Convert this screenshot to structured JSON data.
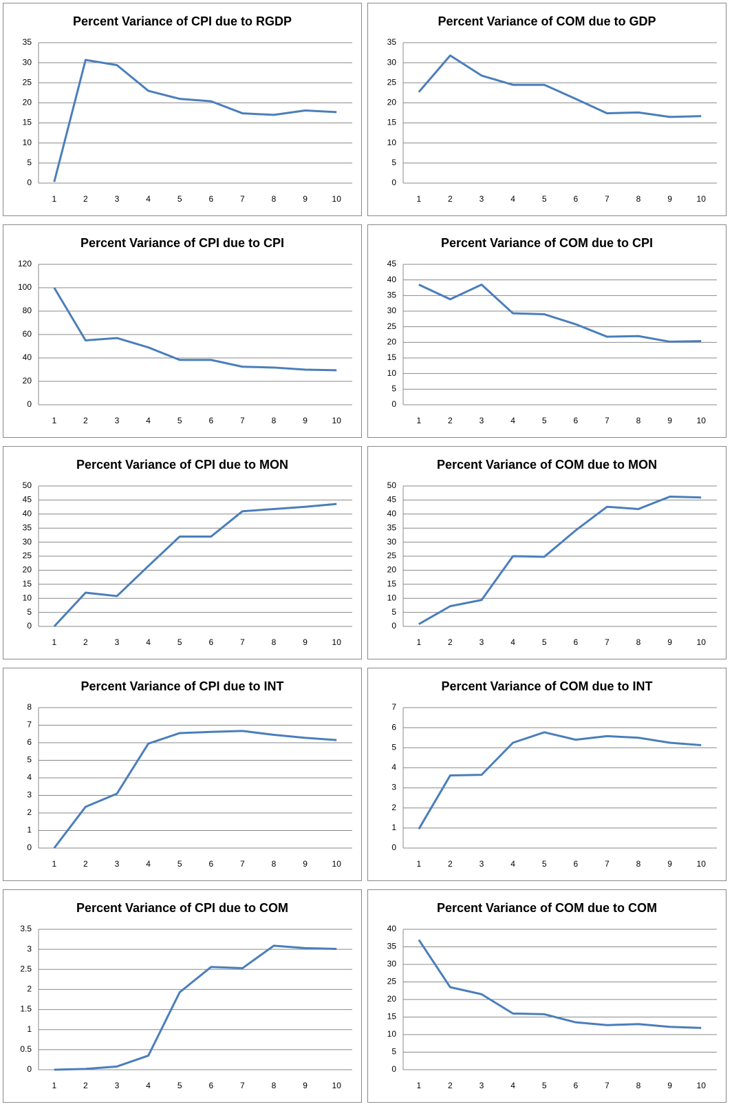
{
  "chart_data": [
    {
      "type": "line",
      "title": "Percent Variance of CPI due to RGDP",
      "categories": [
        "1",
        "2",
        "3",
        "4",
        "5",
        "6",
        "7",
        "8",
        "9",
        "10"
      ],
      "series": [
        {
          "color": "#4a7ebb",
          "values": [
            0.3,
            30.7,
            29.4,
            23,
            21,
            20.4,
            17.4,
            17,
            18.1,
            17.7
          ]
        }
      ],
      "ylim": [
        0,
        35
      ],
      "yticks": [
        0,
        5,
        10,
        15,
        20,
        25,
        30,
        35
      ],
      "grid": true
    },
    {
      "type": "line",
      "title": "Percent Variance of COM due to GDP",
      "categories": [
        "1",
        "2",
        "3",
        "4",
        "5",
        "6",
        "7",
        "8",
        "9",
        "10"
      ],
      "series": [
        {
          "color": "#4a7ebb",
          "values": [
            22.7,
            31.8,
            26.8,
            24.5,
            24.5,
            21,
            17.4,
            17.6,
            16.5,
            16.7
          ]
        }
      ],
      "ylim": [
        0,
        35
      ],
      "yticks": [
        0,
        5,
        10,
        15,
        20,
        25,
        30,
        35
      ],
      "grid": true
    },
    {
      "type": "line",
      "title": "Percent Variance of CPI due to CPI",
      "categories": [
        "1",
        "2",
        "3",
        "4",
        "5",
        "6",
        "7",
        "8",
        "9",
        "10"
      ],
      "series": [
        {
          "color": "#4a7ebb",
          "values": [
            100,
            55,
            57,
            49,
            38.3,
            38.3,
            32.5,
            31.8,
            30,
            29.5
          ]
        }
      ],
      "ylim": [
        0,
        120
      ],
      "yticks": [
        0,
        20,
        40,
        60,
        80,
        100,
        120
      ],
      "grid": true
    },
    {
      "type": "line",
      "title": "Percent Variance of COM due to CPI",
      "categories": [
        "1",
        "2",
        "3",
        "4",
        "5",
        "6",
        "7",
        "8",
        "9",
        "10"
      ],
      "series": [
        {
          "color": "#4a7ebb",
          "values": [
            38.5,
            33.8,
            38.5,
            29.3,
            29,
            25.8,
            21.8,
            22,
            20.2,
            20.4
          ]
        }
      ],
      "ylim": [
        0,
        45
      ],
      "yticks": [
        0,
        5,
        10,
        15,
        20,
        25,
        30,
        35,
        40,
        45
      ],
      "grid": true
    },
    {
      "type": "line",
      "title": "Percent Variance of CPI due to MON",
      "categories": [
        "1",
        "2",
        "3",
        "4",
        "5",
        "6",
        "7",
        "8",
        "9",
        "10"
      ],
      "series": [
        {
          "color": "#4a7ebb",
          "values": [
            0,
            12,
            10.8,
            21.5,
            32,
            32,
            41,
            41.8,
            42.6,
            43.6
          ]
        }
      ],
      "ylim": [
        0,
        50
      ],
      "yticks": [
        0,
        5,
        10,
        15,
        20,
        25,
        30,
        35,
        40,
        45,
        50
      ],
      "grid": true
    },
    {
      "type": "line",
      "title": "Percent Variance of COM due to MON",
      "categories": [
        "1",
        "2",
        "3",
        "4",
        "5",
        "6",
        "7",
        "8",
        "9",
        "10"
      ],
      "series": [
        {
          "color": "#4a7ebb",
          "values": [
            0.8,
            7.2,
            9.4,
            25,
            24.8,
            34.2,
            42.6,
            41.8,
            46.2,
            45.9
          ]
        }
      ],
      "ylim": [
        0,
        50
      ],
      "yticks": [
        0,
        5,
        10,
        15,
        20,
        25,
        30,
        35,
        40,
        45,
        50
      ],
      "grid": true
    },
    {
      "type": "line",
      "title": "Percent Variance of CPI due to INT",
      "categories": [
        "1",
        "2",
        "3",
        "4",
        "5",
        "6",
        "7",
        "8",
        "9",
        "10"
      ],
      "series": [
        {
          "color": "#4a7ebb",
          "values": [
            0,
            2.35,
            3.1,
            5.95,
            6.55,
            6.62,
            6.67,
            6.45,
            6.28,
            6.15
          ]
        }
      ],
      "ylim": [
        0,
        8
      ],
      "yticks": [
        0,
        1,
        2,
        3,
        4,
        5,
        6,
        7,
        8
      ],
      "grid": true
    },
    {
      "type": "line",
      "title": "Percent Variance of COM due to INT",
      "categories": [
        "1",
        "2",
        "3",
        "4",
        "5",
        "6",
        "7",
        "8",
        "9",
        "10"
      ],
      "series": [
        {
          "color": "#4a7ebb",
          "values": [
            0.95,
            3.62,
            3.65,
            5.25,
            5.77,
            5.4,
            5.58,
            5.5,
            5.25,
            5.13
          ]
        }
      ],
      "ylim": [
        0,
        7
      ],
      "yticks": [
        0,
        1,
        2,
        3,
        4,
        5,
        6,
        7
      ],
      "grid": true
    },
    {
      "type": "line",
      "title": "Percent Variance of CPI due to COM",
      "categories": [
        "1",
        "2",
        "3",
        "4",
        "5",
        "6",
        "7",
        "8",
        "9",
        "10"
      ],
      "series": [
        {
          "color": "#4a7ebb",
          "values": [
            0,
            0.02,
            0.08,
            0.35,
            1.93,
            2.56,
            2.53,
            3.09,
            3.03,
            3.01
          ]
        }
      ],
      "ylim": [
        0,
        3.5
      ],
      "yticks": [
        0,
        0.5,
        1,
        1.5,
        2,
        2.5,
        3,
        3.5
      ],
      "grid": true
    },
    {
      "type": "line",
      "title": "Percent Variance of COM due to COM",
      "categories": [
        "1",
        "2",
        "3",
        "4",
        "5",
        "6",
        "7",
        "8",
        "9",
        "10"
      ],
      "series": [
        {
          "color": "#4a7ebb",
          "values": [
            37,
            23.5,
            21.5,
            16,
            15.8,
            13.5,
            12.7,
            13,
            12.2,
            11.9
          ]
        }
      ],
      "ylim": [
        0,
        40
      ],
      "yticks": [
        0,
        5,
        10,
        15,
        20,
        25,
        30,
        35,
        40
      ],
      "grid": true
    }
  ]
}
